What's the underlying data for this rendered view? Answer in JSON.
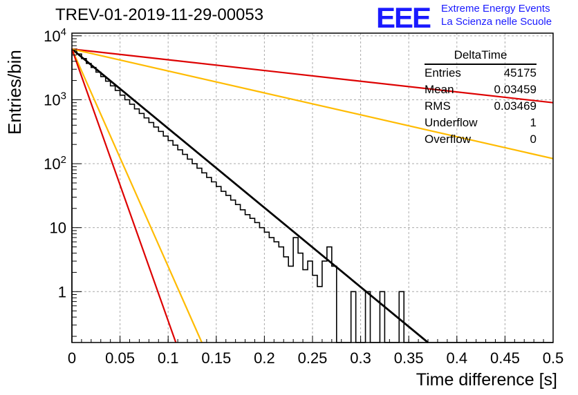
{
  "plot_title": "TREV-01-2019-11-29-00053",
  "logo": {
    "mark": "EEE",
    "line1": "Extreme Energy Events",
    "line2": "La Scienza nelle Scuole"
  },
  "stats": {
    "title": "DeltaTime",
    "rows": [
      {
        "label": "Entries",
        "value": "45175"
      },
      {
        "label": "Mean",
        "value": "0.03459"
      },
      {
        "label": "RMS",
        "value": "0.03469"
      },
      {
        "label": "Underflow",
        "value": "1"
      },
      {
        "label": "Overflow",
        "value": "0"
      }
    ]
  },
  "chart_data": {
    "type": "line",
    "title": "TREV-01-2019-11-29-00053",
    "xlabel": "Time difference [s]",
    "ylabel": "Entries/bin",
    "xlim": [
      0,
      0.5
    ],
    "ylim": [
      0.16,
      11000
    ],
    "yscale": "log",
    "grid": true,
    "x_ticks": [
      "0",
      "0.05",
      "0.1",
      "0.15",
      "0.2",
      "0.25",
      "0.3",
      "0.35",
      "0.4",
      "0.45",
      "0.5"
    ],
    "y_ticks": [
      "1",
      "10",
      "10^2",
      "10^3",
      "10^4"
    ],
    "histogram": {
      "bin_width": 0.005,
      "x_start": 0,
      "counts": [
        6200,
        5200,
        4400,
        3700,
        3200,
        2700,
        2300,
        1950,
        1650,
        1400,
        1180,
        1000,
        850,
        720,
        610,
        520,
        440,
        375,
        320,
        270,
        230,
        195,
        165,
        140,
        118,
        100,
        85,
        72,
        61,
        52,
        44,
        37,
        32,
        27,
        23,
        19,
        16,
        14,
        12,
        10,
        8.5,
        7,
        6,
        5,
        3.5,
        2.5,
        7,
        4,
        2.2,
        3,
        1.8,
        1.2,
        3,
        5,
        2.5,
        0,
        0,
        0,
        1,
        0,
        0,
        1,
        0,
        0,
        1,
        0,
        0,
        0,
        1,
        0,
        0,
        0,
        0,
        0,
        0,
        0,
        0,
        0,
        0,
        0,
        0,
        0,
        0,
        0,
        0,
        0,
        0,
        0,
        0,
        0,
        0,
        0,
        0,
        0,
        0,
        0,
        0,
        0,
        0,
        0
      ]
    },
    "fits": [
      {
        "color": "#000000",
        "x": [
          0,
          0.37
        ],
        "y": [
          6200,
          0.16
        ]
      },
      {
        "color": "#dd0000",
        "x": [
          0,
          0.5
        ],
        "y": [
          6200,
          900
        ]
      },
      {
        "color": "#ffbb00",
        "x": [
          0,
          0.5
        ],
        "y": [
          6200,
          120
        ]
      },
      {
        "color": "#ffbb00",
        "x": [
          0,
          0.135
        ],
        "y": [
          6200,
          0.16
        ]
      },
      {
        "color": "#dd0000",
        "x": [
          0,
          0.108
        ],
        "y": [
          6200,
          0.16
        ]
      }
    ]
  }
}
